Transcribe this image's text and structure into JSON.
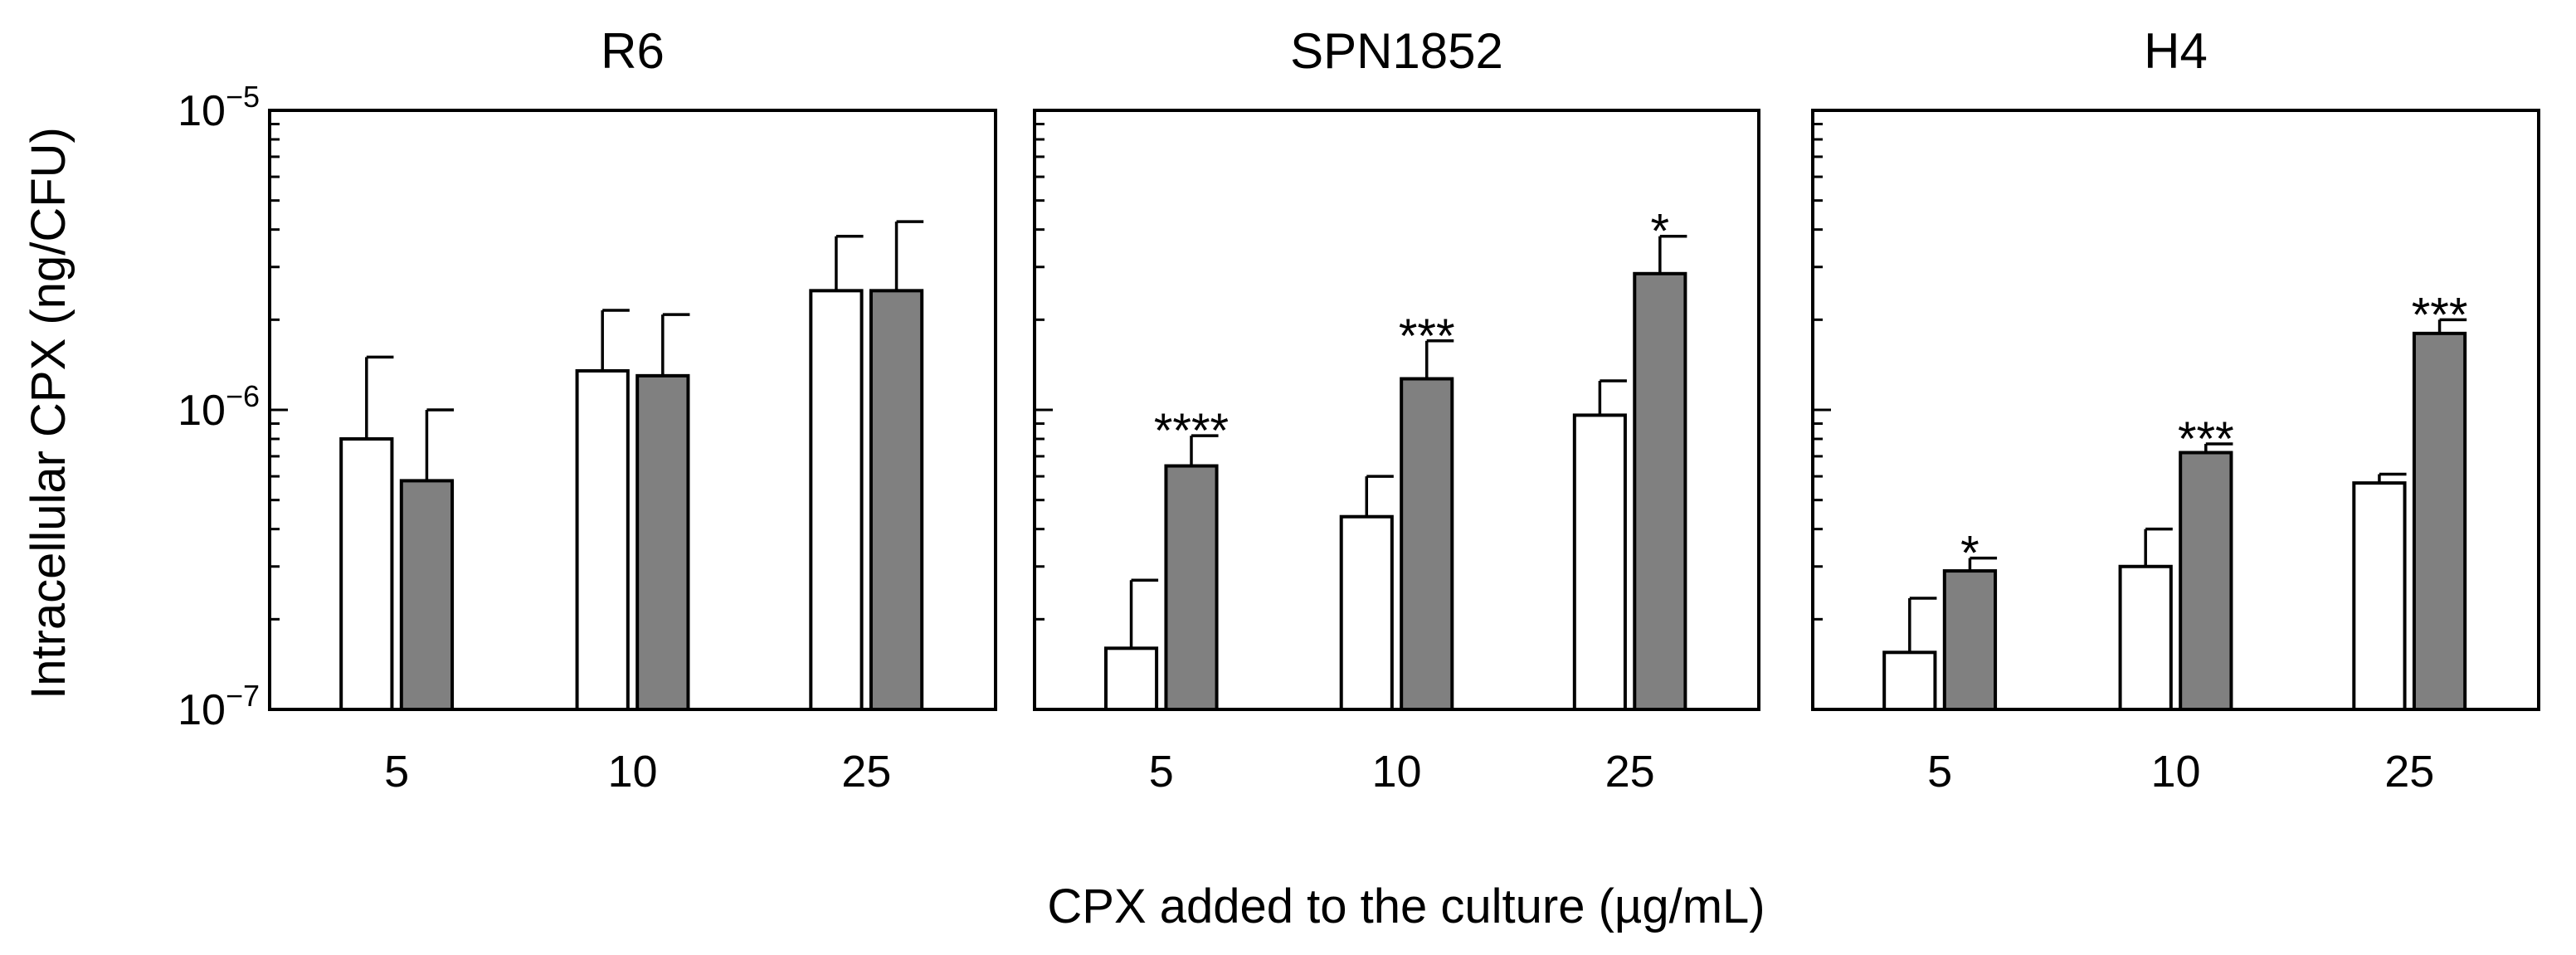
{
  "figure": {
    "ylabel": "Intracellular CPX (ng/CFU)",
    "xlabel": "CPX added to the culture (µg/mL)",
    "y_tick_labels": [
      {
        "value": 1e-05,
        "base": "10",
        "exp": "−5"
      },
      {
        "value": 1e-06,
        "base": "10",
        "exp": "−6"
      },
      {
        "value": 1e-07,
        "base": "10",
        "exp": "−7"
      }
    ]
  },
  "chart_data": [
    {
      "type": "bar",
      "title": "R6",
      "yscale": "log",
      "ylim": [
        1e-07,
        1e-05
      ],
      "categories": [
        "5",
        "10",
        "25"
      ],
      "series": [
        {
          "name": "white",
          "color": "#ffffff",
          "values": [
            8e-07,
            1.35e-06,
            2.5e-06
          ],
          "errors": [
            7e-07,
            8e-07,
            1.3e-06
          ]
        },
        {
          "name": "gray",
          "color": "#808080",
          "values": [
            5.8e-07,
            1.3e-06,
            2.5e-06
          ],
          "errors": [
            4.2e-07,
            7.8e-07,
            1.75e-06
          ]
        }
      ],
      "annotations": [
        "",
        "",
        ""
      ]
    },
    {
      "type": "bar",
      "title": "SPN1852",
      "yscale": "log",
      "ylim": [
        1e-07,
        1e-05
      ],
      "categories": [
        "5",
        "10",
        "25"
      ],
      "series": [
        {
          "name": "white",
          "color": "#ffffff",
          "values": [
            1.6e-07,
            4.4e-07,
            9.6e-07
          ],
          "errors": [
            1.1e-07,
            1.6e-07,
            2.9e-07
          ]
        },
        {
          "name": "gray",
          "color": "#808080",
          "values": [
            6.5e-07,
            1.27e-06,
            2.85e-06
          ],
          "errors": [
            1.7e-07,
            4.3e-07,
            9.5e-07
          ]
        }
      ],
      "annotations": [
        "****",
        "***",
        "*"
      ]
    },
    {
      "type": "bar",
      "title": "H4",
      "yscale": "log",
      "ylim": [
        1e-07,
        1e-05
      ],
      "categories": [
        "5",
        "10",
        "25"
      ],
      "series": [
        {
          "name": "white",
          "color": "#ffffff",
          "values": [
            1.55e-07,
            3e-07,
            5.7e-07
          ],
          "errors": [
            8e-08,
            1e-07,
            4e-08
          ]
        },
        {
          "name": "gray",
          "color": "#808080",
          "values": [
            2.9e-07,
            7.2e-07,
            1.8e-06
          ],
          "errors": [
            3e-08,
            5e-08,
            2e-07
          ]
        }
      ],
      "annotations": [
        "*",
        "***",
        "***"
      ]
    }
  ]
}
